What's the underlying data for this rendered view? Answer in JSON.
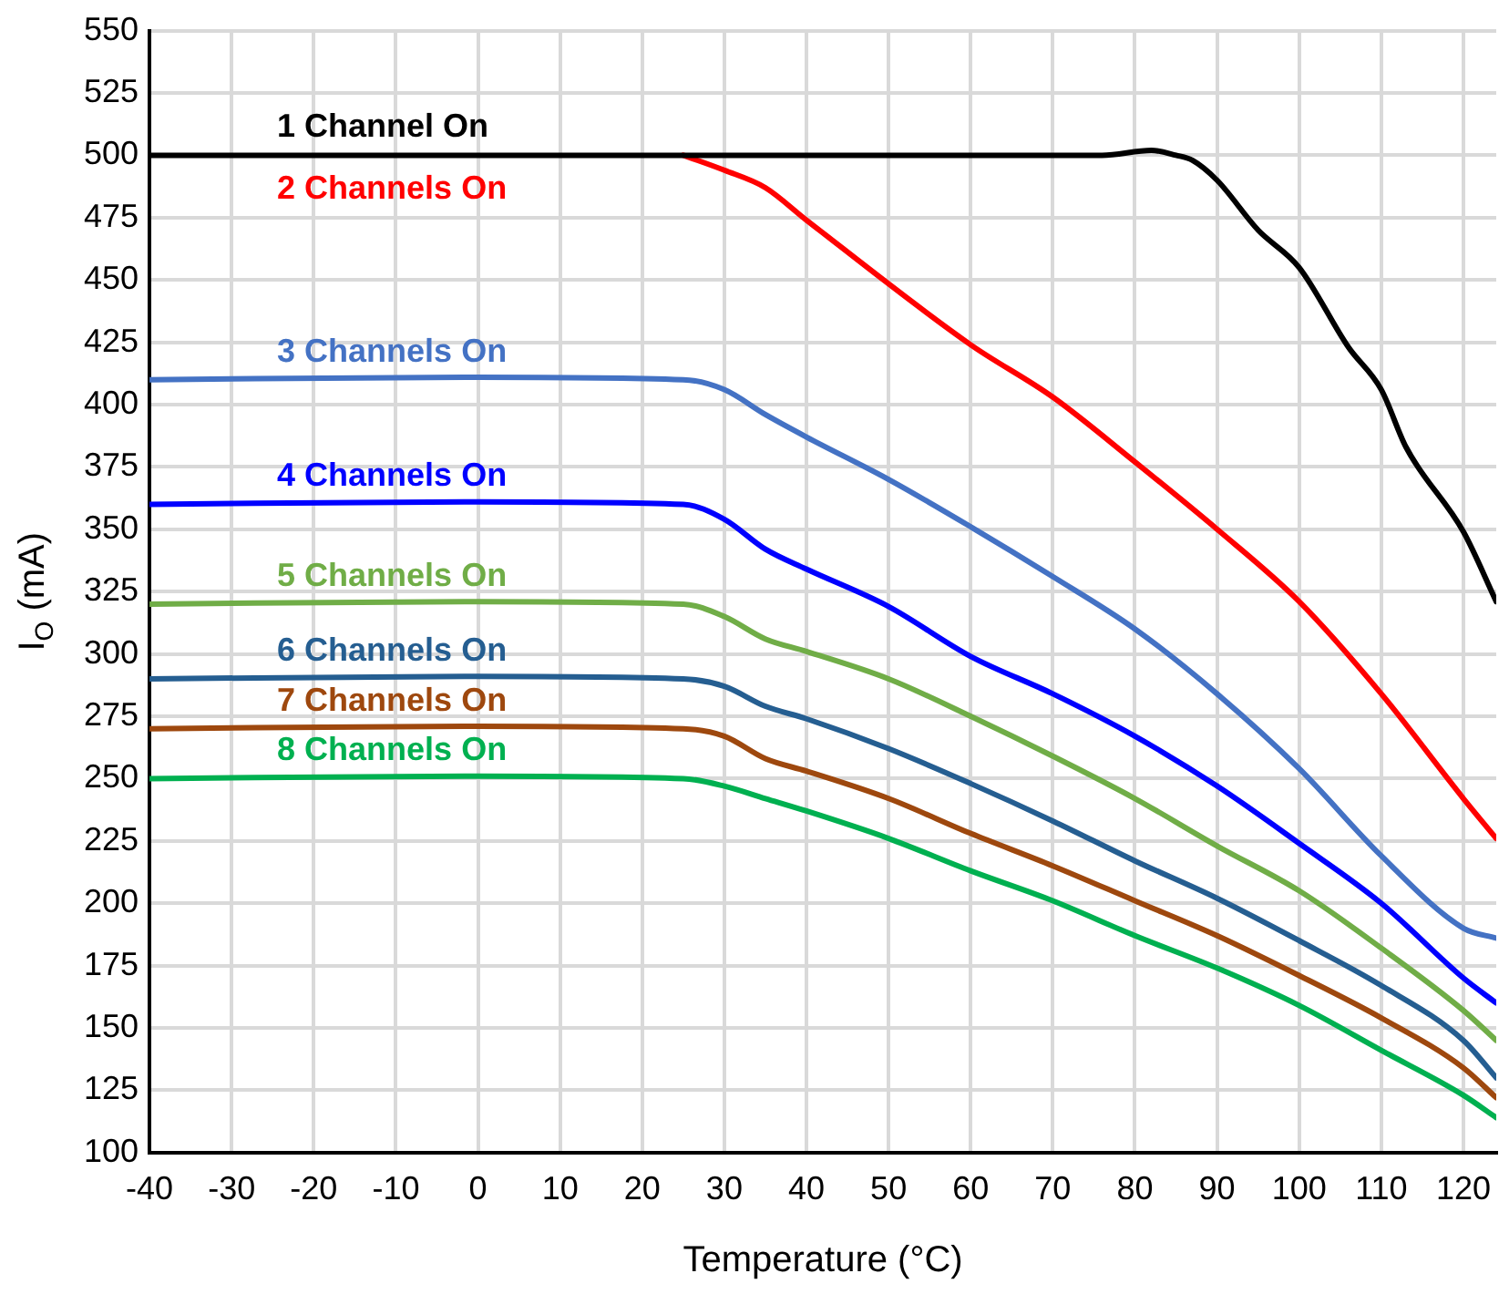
{
  "chart_data": {
    "type": "line",
    "xlabel": "Temperature (°C)",
    "ylabel": "I$_{O}$ (mA)",
    "xlim": [
      -40,
      124
    ],
    "xticks": [
      -40,
      -30,
      -20,
      -10,
      0,
      10,
      20,
      30,
      40,
      50,
      60,
      70,
      80,
      90,
      100,
      110,
      120
    ],
    "ylim": [
      100,
      550
    ],
    "yticks": [
      100,
      125,
      150,
      175,
      200,
      225,
      250,
      275,
      300,
      325,
      350,
      375,
      400,
      425,
      450,
      475,
      500,
      525,
      550
    ],
    "grid": true,
    "legend": false,
    "marker": "none",
    "line_style": "solid",
    "series": [
      {
        "name": "1 Channel On",
        "color": "#000000",
        "x": [
          -40,
          76,
          82,
          85,
          87,
          90,
          95,
          100,
          106,
          110,
          113,
          120,
          124
        ],
        "values": [
          500,
          500,
          502,
          500,
          498,
          490,
          470,
          455,
          423,
          406,
          383,
          349,
          321
        ]
      },
      {
        "name": "2 Channels On",
        "color": "#ff0000",
        "x": [
          25,
          30,
          35,
          40,
          60,
          70,
          80,
          90,
          100,
          110,
          120,
          124
        ],
        "values": [
          500,
          494,
          487,
          474,
          424,
          403,
          377,
          350,
          321,
          284,
          242,
          226
        ]
      },
      {
        "name": "3 Channels On",
        "color": "#4472c4",
        "x": [
          -40,
          0,
          25,
          30,
          35,
          40,
          50,
          60,
          70,
          80,
          90,
          100,
          110,
          120,
          124
        ],
        "values": [
          410,
          411,
          410,
          406,
          396,
          387,
          370,
          351,
          331,
          310,
          284,
          254,
          219,
          190,
          186
        ]
      },
      {
        "name": "4 Channels On",
        "color": "#0000ff",
        "x": [
          -40,
          0,
          25,
          30,
          35,
          40,
          50,
          60,
          70,
          80,
          90,
          100,
          110,
          120,
          124
        ],
        "values": [
          360,
          361,
          360,
          354,
          342,
          334,
          319,
          299,
          284,
          267,
          247,
          224,
          200,
          170,
          160
        ]
      },
      {
        "name": "5 Channels On",
        "color": "#70ad47",
        "x": [
          -40,
          0,
          25,
          30,
          35,
          40,
          50,
          60,
          70,
          80,
          90,
          100,
          110,
          120,
          124
        ],
        "values": [
          320,
          321,
          320,
          315,
          306,
          301,
          290,
          275,
          259,
          242,
          223,
          205,
          182,
          157,
          145
        ]
      },
      {
        "name": "6 Channels On",
        "color": "#255e91",
        "x": [
          -40,
          0,
          25,
          30,
          35,
          40,
          50,
          60,
          70,
          80,
          90,
          100,
          110,
          120,
          124
        ],
        "values": [
          290,
          291,
          290,
          287,
          279,
          274,
          262,
          248,
          233,
          217,
          202,
          185,
          167,
          145,
          130
        ]
      },
      {
        "name": "7 Channels On",
        "color": "#9e480e",
        "x": [
          -40,
          0,
          25,
          30,
          35,
          40,
          50,
          60,
          70,
          80,
          90,
          100,
          110,
          120,
          124
        ],
        "values": [
          270,
          271,
          270,
          267,
          258,
          253,
          242,
          228,
          215,
          201,
          187,
          171,
          154,
          134,
          122
        ]
      },
      {
        "name": "8 Channels On",
        "color": "#00b050",
        "x": [
          -40,
          0,
          25,
          30,
          35,
          40,
          50,
          60,
          70,
          80,
          90,
          100,
          110,
          120,
          124
        ],
        "values": [
          250,
          251,
          250,
          247,
          242,
          237,
          226,
          213,
          201,
          187,
          174,
          159,
          141,
          123,
          114
        ]
      }
    ]
  }
}
